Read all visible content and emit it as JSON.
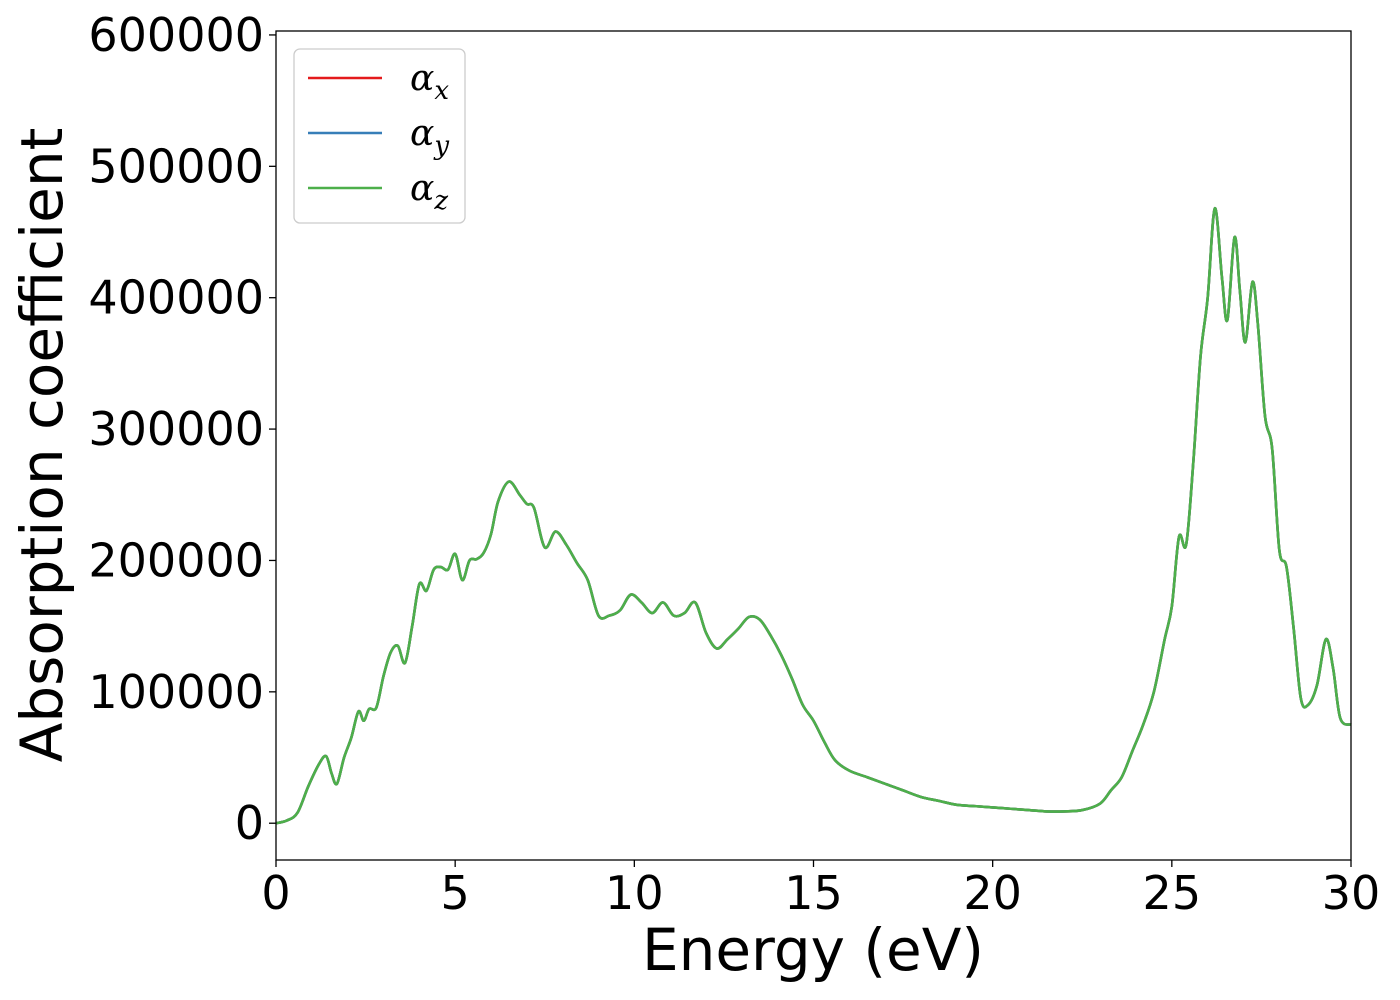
{
  "chart_data": {
    "type": "line",
    "title": "",
    "xlabel": "Energy (eV)",
    "ylabel": "Absorption coefficient",
    "xlim": [
      0,
      30
    ],
    "ylim": [
      -28000,
      603000
    ],
    "xticks": [
      "0",
      "5",
      "10",
      "15",
      "20",
      "25",
      "30"
    ],
    "yticks": [
      "0",
      "100000",
      "200000",
      "300000",
      "400000",
      "500000",
      "600000"
    ],
    "grid": false,
    "legend_position": "top-left",
    "x": [
      0,
      0.3,
      0.6,
      0.9,
      1.2,
      1.4,
      1.55,
      1.7,
      1.9,
      2.1,
      2.3,
      2.45,
      2.6,
      2.8,
      3.0,
      3.2,
      3.4,
      3.6,
      3.8,
      4.0,
      4.2,
      4.4,
      4.6,
      4.8,
      5.0,
      5.2,
      5.4,
      5.6,
      5.8,
      6.0,
      6.2,
      6.5,
      6.8,
      7.0,
      7.2,
      7.5,
      7.8,
      8.1,
      8.4,
      8.7,
      9.0,
      9.3,
      9.6,
      9.9,
      10.2,
      10.5,
      10.8,
      11.1,
      11.4,
      11.7,
      12.0,
      12.3,
      12.6,
      12.9,
      13.2,
      13.5,
      13.8,
      14.1,
      14.4,
      14.7,
      15.0,
      15.3,
      15.6,
      16.0,
      16.5,
      17.0,
      17.5,
      18.0,
      18.5,
      19.0,
      19.5,
      20.0,
      20.5,
      21.0,
      21.5,
      22.0,
      22.5,
      23.0,
      23.3,
      23.6,
      23.9,
      24.2,
      24.5,
      24.8,
      25.0,
      25.2,
      25.4,
      25.6,
      25.8,
      26.0,
      26.2,
      26.4,
      26.55,
      26.75,
      26.9,
      27.05,
      27.25,
      27.4,
      27.6,
      27.8,
      28.0,
      28.2,
      28.4,
      28.6,
      28.8,
      29.05,
      29.3,
      29.5,
      29.7,
      30.0
    ],
    "series": [
      {
        "name": "αx",
        "color": "#e41a1c",
        "values": [
          0,
          2000,
          8000,
          28000,
          45000,
          51000,
          38000,
          30000,
          50000,
          65000,
          85000,
          78000,
          87000,
          88000,
          112000,
          130000,
          135000,
          122000,
          150000,
          182000,
          177000,
          193000,
          195000,
          193000,
          205000,
          185000,
          200000,
          201000,
          206000,
          220000,
          245000,
          260000,
          250000,
          243000,
          240000,
          210000,
          222000,
          212000,
          198000,
          185000,
          158000,
          158000,
          162000,
          174000,
          168000,
          160000,
          168000,
          158000,
          160000,
          168000,
          145000,
          133000,
          140000,
          148000,
          157000,
          155000,
          143000,
          128000,
          110000,
          90000,
          78000,
          62000,
          48000,
          40000,
          35000,
          30000,
          25000,
          20000,
          17000,
          14000,
          13000,
          12000,
          11000,
          10000,
          9000,
          9000,
          10000,
          15000,
          25000,
          35000,
          55000,
          75000,
          100000,
          140000,
          165000,
          218000,
          212000,
          275000,
          355000,
          400000,
          468000,
          415000,
          383000,
          446000,
          405000,
          366000,
          412000,
          380000,
          310000,
          285000,
          208000,
          195000,
          148000,
          95000,
          90000,
          105000,
          140000,
          118000,
          80000,
          75000
        ]
      },
      {
        "name": "αy",
        "color": "#377eb8",
        "values": [
          0,
          2000,
          8000,
          28000,
          45000,
          51000,
          38000,
          30000,
          50000,
          65000,
          85000,
          78000,
          87000,
          88000,
          112000,
          130000,
          135000,
          122000,
          150000,
          182000,
          177000,
          193000,
          195000,
          193000,
          205000,
          185000,
          200000,
          201000,
          206000,
          220000,
          245000,
          260000,
          250000,
          243000,
          240000,
          210000,
          222000,
          212000,
          198000,
          185000,
          158000,
          158000,
          162000,
          174000,
          168000,
          160000,
          168000,
          158000,
          160000,
          168000,
          145000,
          133000,
          140000,
          148000,
          157000,
          155000,
          143000,
          128000,
          110000,
          90000,
          78000,
          62000,
          48000,
          40000,
          35000,
          30000,
          25000,
          20000,
          17000,
          14000,
          13000,
          12000,
          11000,
          10000,
          9000,
          9000,
          10000,
          15000,
          25000,
          35000,
          55000,
          75000,
          100000,
          140000,
          165000,
          218000,
          212000,
          275000,
          355000,
          400000,
          468000,
          415000,
          383000,
          446000,
          405000,
          366000,
          412000,
          380000,
          310000,
          285000,
          208000,
          195000,
          148000,
          95000,
          90000,
          105000,
          140000,
          118000,
          80000,
          75000
        ]
      },
      {
        "name": "αz",
        "color": "#4daf4a",
        "values": [
          0,
          2000,
          8000,
          28000,
          45000,
          51000,
          38000,
          30000,
          50000,
          65000,
          85000,
          78000,
          87000,
          88000,
          112000,
          130000,
          135000,
          122000,
          150000,
          182000,
          177000,
          193000,
          195000,
          193000,
          205000,
          185000,
          200000,
          201000,
          206000,
          220000,
          245000,
          260000,
          250000,
          243000,
          240000,
          210000,
          222000,
          212000,
          198000,
          185000,
          158000,
          158000,
          162000,
          174000,
          168000,
          160000,
          168000,
          158000,
          160000,
          168000,
          145000,
          133000,
          140000,
          148000,
          157000,
          155000,
          143000,
          128000,
          110000,
          90000,
          78000,
          62000,
          48000,
          40000,
          35000,
          30000,
          25000,
          20000,
          17000,
          14000,
          13000,
          12000,
          11000,
          10000,
          9000,
          9000,
          10000,
          15000,
          25000,
          35000,
          55000,
          75000,
          100000,
          140000,
          165000,
          218000,
          212000,
          275000,
          355000,
          400000,
          468000,
          415000,
          383000,
          446000,
          405000,
          366000,
          412000,
          380000,
          310000,
          285000,
          208000,
          195000,
          148000,
          95000,
          90000,
          105000,
          140000,
          118000,
          80000,
          75000
        ]
      }
    ],
    "legend": {
      "entries": [
        {
          "base": "α",
          "sub": "x"
        },
        {
          "base": "α",
          "sub": "y"
        },
        {
          "base": "α",
          "sub": "z"
        }
      ]
    }
  }
}
